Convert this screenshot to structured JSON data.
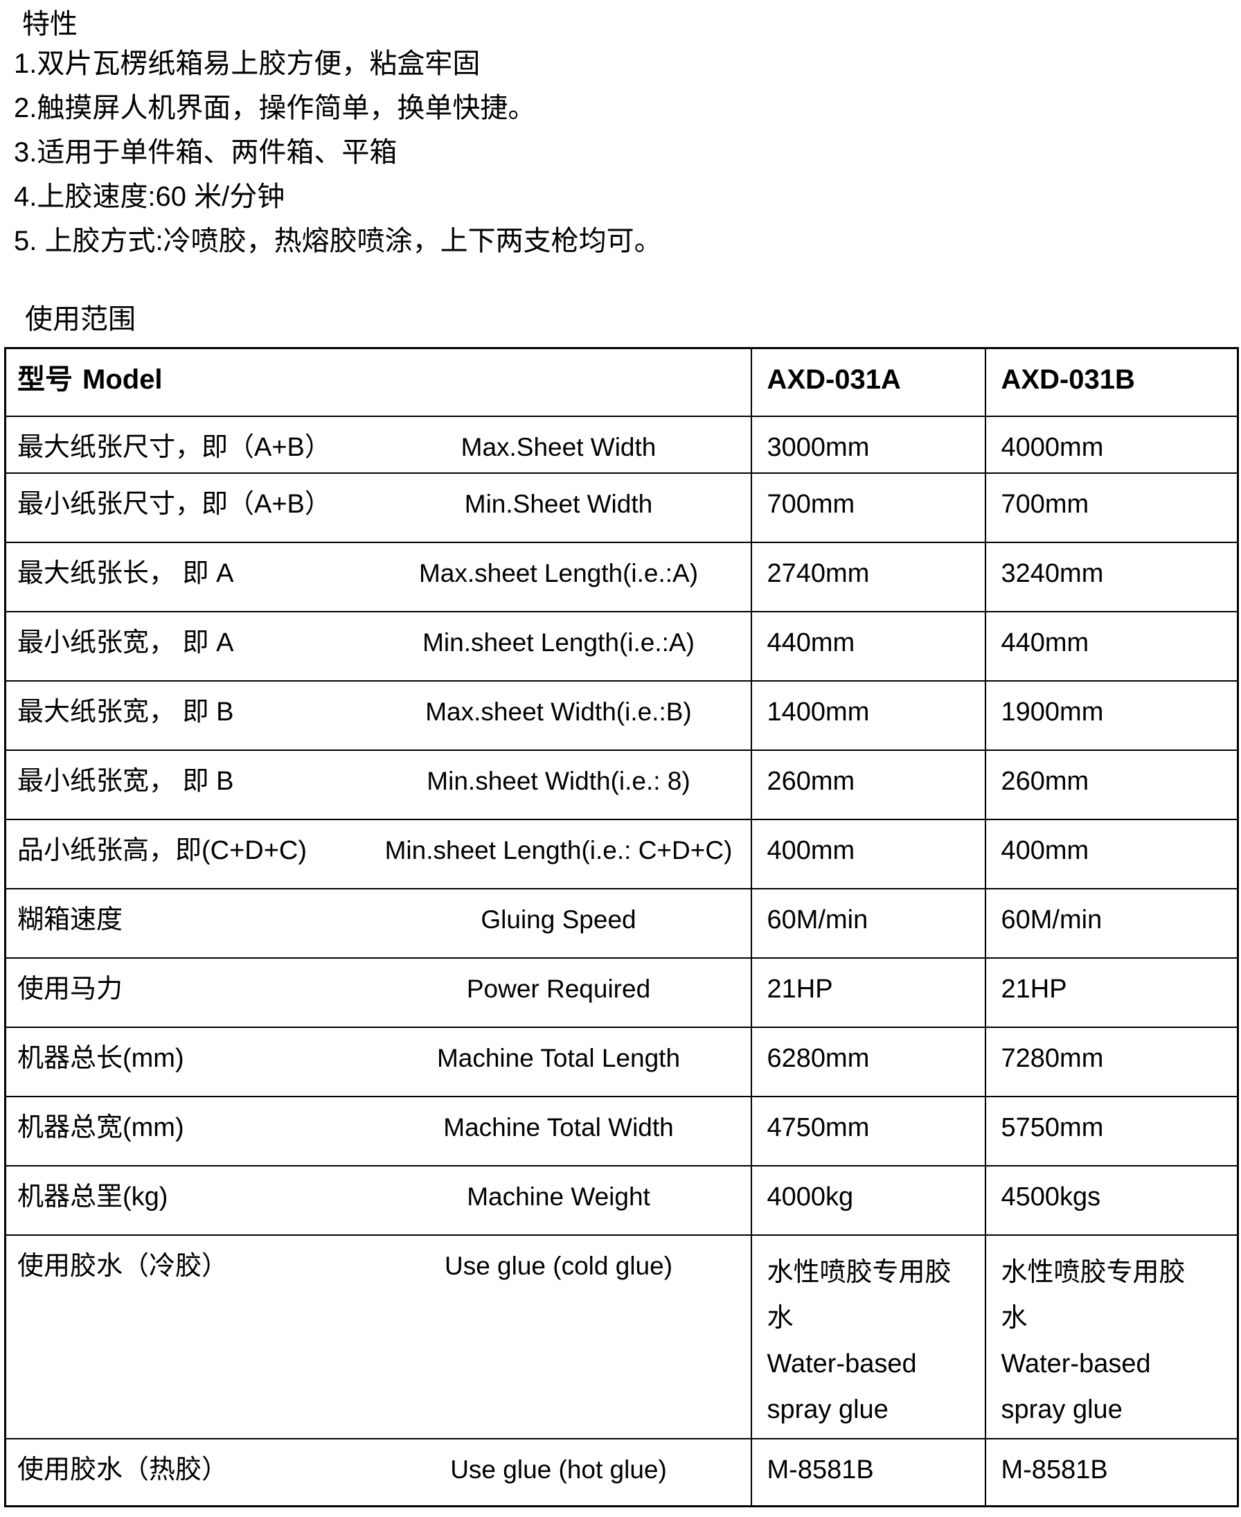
{
  "intro": {
    "title": "特性",
    "items": [
      "1.双片瓦楞纸箱易上胶方便，粘盒牢固",
      "2.触摸屏人机界面，操作简单，换单快捷。",
      "3.适用于单件箱、两件箱、平箱",
      "4.上胶速度:60 米/分钟",
      "5. 上胶方式:冷喷胶，热熔胶喷涂，上下两支枪均可。"
    ]
  },
  "scope_title": "使用范围",
  "table": {
    "header": {
      "model_zh": "型号",
      "model_en": "Model",
      "col_a": "AXD-031A",
      "col_b": "AXD-031B"
    },
    "rows": [
      {
        "zh": "最大纸张尺寸，即（A+B）",
        "en": "Max.Sheet Width",
        "a": "3000mm",
        "b": "4000mm"
      },
      {
        "zh": "最小纸张尺寸，即（A+B）",
        "en": "Min.Sheet Width",
        "a": "700mm",
        "b": "700mm"
      },
      {
        "zh": "最大纸张长， 即 A",
        "en": "Max.sheet Length(i.e.:A)",
        "a": "2740mm",
        "b": "3240mm"
      },
      {
        "zh": "最小纸张宽， 即 A",
        "en": "Min.sheet Length(i.e.:A)",
        "a": "440mm",
        "b": "440mm"
      },
      {
        "zh": "最大纸张宽， 即 B",
        "en": "Max.sheet Width(i.e.:B)",
        "a": "1400mm",
        "b": "1900mm"
      },
      {
        "zh": "最小纸张宽， 即 B",
        "en": "Min.sheet Width(i.e.: 8)",
        "a": "260mm",
        "b": "260mm"
      },
      {
        "zh": "品小纸张高，即(C+D+C)",
        "en": "Min.sheet Length(i.e.: C+D+C)",
        "a": "400mm",
        "b": "400mm"
      },
      {
        "zh": "糊箱速度",
        "en": "Gluing Speed",
        "a": "60M/min",
        "b": "60M/min"
      },
      {
        "zh": "使用马力",
        "en": "Power Required",
        "a": "21HP",
        "b": "21HP"
      },
      {
        "zh": "机器总长(mm)",
        "en": "Machine Total Length",
        "a": "6280mm",
        "b": "7280mm"
      },
      {
        "zh": "机器总宽(mm)",
        "en": "Machine Total Width",
        "a": "4750mm",
        "b": "5750mm"
      },
      {
        "zh": "机器总罜(kg)",
        "en": "Machine Weight",
        "a": "4000kg",
        "b": "4500kgs"
      },
      {
        "zh": "使用胶水（冷胶）",
        "en": "Use glue (cold glue)",
        "a_zh": "水性喷胶专用胶水",
        "a_en": "Water-based spray glue",
        "b_zh": "水性喷胶专用胶水",
        "b_en": "Water-based spray glue"
      },
      {
        "zh": "使用胶水（热胶）",
        "en": "Use glue (hot glue)",
        "a": "M-8581B",
        "b": "M-8581B"
      }
    ]
  }
}
